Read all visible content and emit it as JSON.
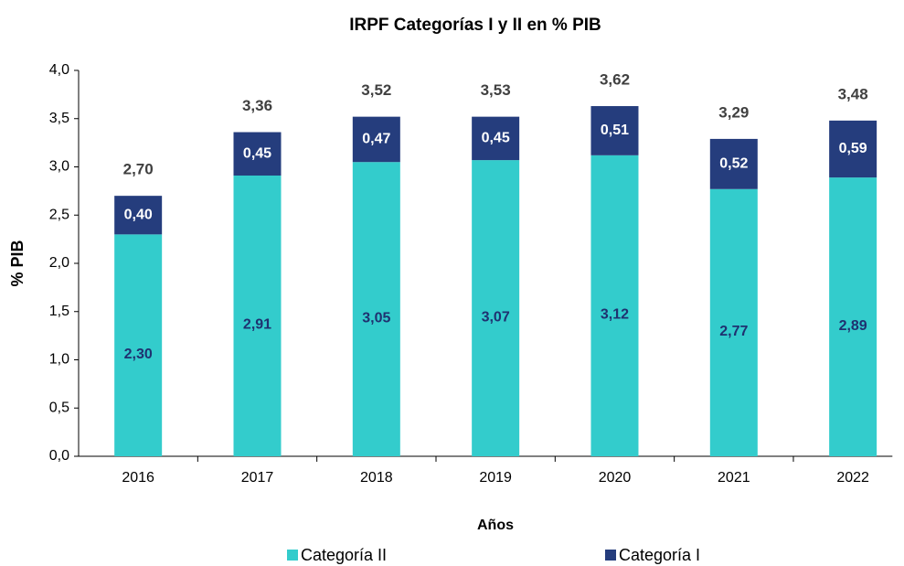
{
  "chart_data": {
    "type": "stacked_bar",
    "title": "IRPF Categorías I y II en % PIB",
    "x_label": "Años",
    "y_label": "% PIB",
    "categories": [
      "2016",
      "2017",
      "2018",
      "2019",
      "2020",
      "2021",
      "2022"
    ],
    "series": [
      {
        "name": "Categoría II",
        "color": "#33cccc",
        "values": [
          2.3,
          2.91,
          3.05,
          3.07,
          3.12,
          2.77,
          2.89
        ],
        "value_labels": [
          "2,30",
          "2,91",
          "3,05",
          "3,07",
          "3,12",
          "2,77",
          "2,89"
        ]
      },
      {
        "name": "Categoría I",
        "color": "#253d7d",
        "values": [
          0.4,
          0.45,
          0.47,
          0.45,
          0.51,
          0.52,
          0.59
        ],
        "value_labels": [
          "0,40",
          "0,45",
          "0,47",
          "0,45",
          "0,51",
          "0,52",
          "0,59"
        ]
      }
    ],
    "annotations": [
      "2,70",
      "3,36",
      "3,52",
      "3,53",
      "3,62",
      "3,29",
      "3,48"
    ],
    "ylim": [
      0,
      4
    ],
    "yticks": [
      {
        "value": 0,
        "label": "0,0"
      },
      {
        "value": 0.5,
        "label": "0,5"
      },
      {
        "value": 1,
        "label": "1,0"
      },
      {
        "value": 1.5,
        "label": "1,5"
      },
      {
        "value": 2,
        "label": "2,0"
      },
      {
        "value": 2.5,
        "label": "2,5"
      },
      {
        "value": 3,
        "label": "3,0"
      },
      {
        "value": 3.5,
        "label": "3,5"
      },
      {
        "value": 4,
        "label": "4,0"
      }
    ],
    "legend": "bottom"
  }
}
